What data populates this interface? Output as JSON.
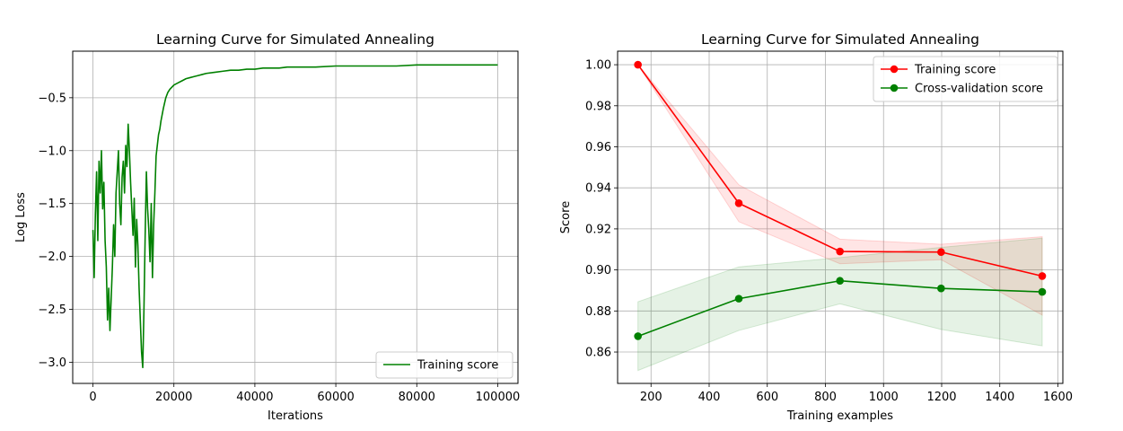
{
  "chart_data": [
    {
      "type": "line",
      "title": "Learning Curve for Simulated Annealing",
      "xlabel": "Iterations",
      "ylabel": "Log Loss",
      "xlim": [
        -5000,
        105000
      ],
      "ylim": [
        -3.2,
        -0.06
      ],
      "xticks": [
        0,
        20000,
        40000,
        60000,
        80000,
        100000
      ],
      "xtick_labels": [
        "0",
        "20000",
        "40000",
        "60000",
        "80000",
        "100000"
      ],
      "yticks": [
        -3.0,
        -2.5,
        -2.0,
        -1.5,
        -1.0,
        -0.5
      ],
      "ytick_labels": [
        "−3.0",
        "−2.5",
        "−2.0",
        "−1.5",
        "−1.0",
        "−0.5"
      ],
      "grid": true,
      "legend_position": "lower-right",
      "series": [
        {
          "name": "Training score",
          "color": "#008000",
          "x": [
            0,
            300,
            600,
            900,
            1200,
            1500,
            1800,
            2100,
            2400,
            2700,
            3000,
            3300,
            3600,
            3900,
            4200,
            4500,
            4800,
            5100,
            5400,
            5700,
            6000,
            6300,
            6600,
            6900,
            7200,
            7500,
            7800,
            8100,
            8400,
            8700,
            9000,
            9300,
            9600,
            9900,
            10200,
            10500,
            10800,
            11100,
            11400,
            11700,
            12000,
            12300,
            12600,
            12900,
            13200,
            13500,
            13800,
            14100,
            14400,
            14700,
            15000,
            15300,
            15600,
            15900,
            16200,
            16500,
            16800,
            17100,
            17400,
            17700,
            18000,
            18500,
            19000,
            19500,
            20000,
            21000,
            22000,
            23000,
            24000,
            25000,
            26000,
            27000,
            28000,
            30000,
            32000,
            34000,
            36000,
            38000,
            40000,
            42000,
            44000,
            46000,
            48000,
            50000,
            55000,
            60000,
            65000,
            70000,
            75000,
            80000,
            85000,
            90000,
            95000,
            100000
          ],
          "y": [
            -1.75,
            -2.2,
            -1.6,
            -1.2,
            -1.85,
            -1.1,
            -1.4,
            -1.0,
            -1.55,
            -1.3,
            -1.85,
            -2.1,
            -2.6,
            -2.3,
            -2.7,
            -2.4,
            -2.1,
            -1.7,
            -2.0,
            -1.4,
            -1.2,
            -1.0,
            -1.5,
            -1.7,
            -1.25,
            -1.1,
            -1.4,
            -0.95,
            -1.15,
            -0.75,
            -1.0,
            -1.3,
            -1.55,
            -1.8,
            -1.45,
            -2.1,
            -1.65,
            -1.9,
            -2.3,
            -2.6,
            -2.9,
            -3.05,
            -2.5,
            -1.8,
            -1.2,
            -1.55,
            -1.75,
            -2.05,
            -1.5,
            -2.2,
            -1.7,
            -1.4,
            -1.05,
            -0.95,
            -0.85,
            -0.8,
            -0.72,
            -0.66,
            -0.6,
            -0.55,
            -0.5,
            -0.45,
            -0.42,
            -0.4,
            -0.38,
            -0.36,
            -0.34,
            -0.32,
            -0.31,
            -0.3,
            -0.29,
            -0.28,
            -0.27,
            -0.26,
            -0.25,
            -0.24,
            -0.24,
            -0.23,
            -0.23,
            -0.22,
            -0.22,
            -0.22,
            -0.21,
            -0.21,
            -0.21,
            -0.2,
            -0.2,
            -0.2,
            -0.2,
            -0.19,
            -0.19,
            -0.19,
            -0.19,
            -0.19
          ]
        }
      ]
    },
    {
      "type": "line",
      "title": "Learning Curve for Simulated Annealing",
      "xlabel": "Training examples",
      "ylabel": "Score",
      "xlim": [
        85,
        1617
      ],
      "ylim": [
        0.8447,
        1.0066
      ],
      "xticks": [
        200,
        400,
        600,
        800,
        1000,
        1200,
        1400,
        1600
      ],
      "xtick_labels": [
        "200",
        "400",
        "600",
        "800",
        "1000",
        "1200",
        "1400",
        "1600"
      ],
      "yticks": [
        0.86,
        0.88,
        0.9,
        0.92,
        0.94,
        0.96,
        0.98,
        1.0
      ],
      "ytick_labels": [
        "0.86",
        "0.88",
        "0.90",
        "0.92",
        "0.94",
        "0.96",
        "0.98",
        "1.00"
      ],
      "grid": true,
      "legend_position": "top-right",
      "x": [
        155,
        502,
        850,
        1198,
        1546
      ],
      "series": [
        {
          "name": "Training score",
          "color": "#ff0000",
          "values": [
            1.0,
            0.9325,
            0.909,
            0.9087,
            0.897
          ],
          "upper": [
            1.0,
            0.9415,
            0.915,
            0.9125,
            0.9162
          ],
          "lower": [
            1.0,
            0.9235,
            0.903,
            0.905,
            0.878
          ]
        },
        {
          "name": "Cross-validation score",
          "color": "#008000",
          "values": [
            0.8677,
            0.886,
            0.8947,
            0.891,
            0.8893
          ],
          "upper": [
            0.8845,
            0.9015,
            0.906,
            0.911,
            0.9155
          ],
          "lower": [
            0.851,
            0.8705,
            0.8835,
            0.871,
            0.863
          ]
        }
      ]
    }
  ]
}
